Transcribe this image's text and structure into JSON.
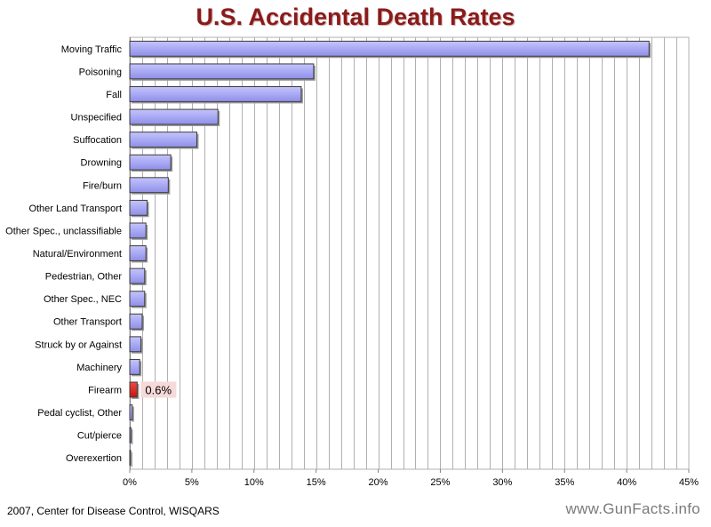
{
  "chart_data": {
    "type": "bar",
    "orientation": "horizontal",
    "title": "U.S. Accidental Death Rates",
    "categories": [
      "Moving Traffic",
      "Poisoning",
      "Fall",
      "Unspecified",
      "Suffocation",
      "Drowning",
      "Fire/burn",
      "Other Land Transport",
      "Other Spec., unclassifiable",
      "Natural/Environment",
      "Pedestrian, Other",
      "Other Spec., NEC",
      "Other Transport",
      "Struck by or Against",
      "Machinery",
      "Firearm",
      "Pedal cyclist, Other",
      "Cut/pierce",
      "Overexertion"
    ],
    "values": [
      41.8,
      14.8,
      13.8,
      7.1,
      5.4,
      3.3,
      3.1,
      1.4,
      1.3,
      1.3,
      1.2,
      1.2,
      1.0,
      0.9,
      0.8,
      0.6,
      0.2,
      0.1,
      0.05
    ],
    "units": "%",
    "xlim": [
      0,
      45
    ],
    "xticks": [
      0,
      5,
      10,
      15,
      20,
      25,
      30,
      35,
      40,
      45
    ],
    "xtick_labels": [
      "0%",
      "5%",
      "10%",
      "15%",
      "20%",
      "25%",
      "30%",
      "35%",
      "40%",
      "45%"
    ],
    "grid": true,
    "highlight": {
      "category": "Firearm",
      "label": "0.6%",
      "color": "#e0201c"
    },
    "bar_color": "#aaaaf6",
    "bar_edge_color": "#3b3b3b",
    "grid_color": "#b0b0b0"
  },
  "footer": {
    "source": "2007, Center for Disease Control, WISQARS",
    "watermark": "www.GunFacts.info"
  }
}
